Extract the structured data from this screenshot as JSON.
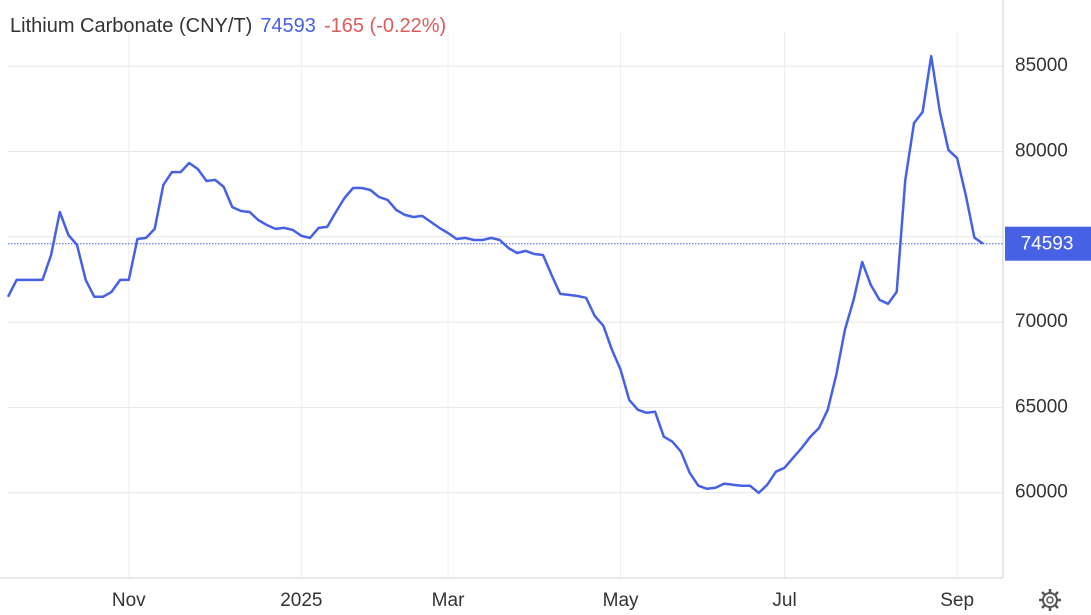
{
  "chart_data": {
    "type": "line",
    "title": "Lithium Carbonate (CNY/T)",
    "change_label": "-165 (-0.22%)",
    "categories": [
      null,
      null,
      null,
      null,
      null,
      null,
      null,
      null,
      null,
      null,
      null,
      null,
      null,
      null,
      "Nov",
      null,
      null,
      null,
      null,
      null,
      null,
      null,
      null,
      null,
      null,
      null,
      null,
      null,
      null,
      null,
      null,
      null,
      null,
      null,
      "2025",
      null,
      null,
      null,
      null,
      null,
      null,
      null,
      null,
      null,
      null,
      null,
      null,
      null,
      null,
      null,
      null,
      "Mar",
      null,
      null,
      null,
      null,
      null,
      null,
      null,
      null,
      null,
      null,
      null,
      null,
      null,
      null,
      null,
      null,
      null,
      null,
      null,
      "May",
      null,
      null,
      null,
      null,
      null,
      null,
      null,
      null,
      null,
      null,
      null,
      null,
      null,
      null,
      null,
      null,
      null,
      null,
      "Jul",
      null,
      null,
      null,
      null,
      null,
      null,
      null,
      null,
      null,
      null,
      null,
      null,
      null,
      null,
      null,
      null,
      null,
      null,
      null,
      "Sep",
      null,
      null,
      null
    ],
    "values": [
      71480,
      72470,
      72470,
      72470,
      72470,
      73930,
      76450,
      75100,
      74520,
      72470,
      71480,
      71480,
      71770,
      72470,
      72470,
      74870,
      74930,
      75460,
      78030,
      78790,
      78790,
      79320,
      78970,
      78270,
      78330,
      77920,
      76740,
      76510,
      76450,
      75980,
      75690,
      75460,
      75520,
      75400,
      75050,
      74930,
      75520,
      75580,
      76450,
      77270,
      77860,
      77860,
      77740,
      77330,
      77160,
      76570,
      76280,
      76160,
      76220,
      75870,
      75520,
      75220,
      74870,
      74930,
      74810,
      74810,
      74930,
      74810,
      74340,
      74050,
      74170,
      73990,
      73930,
      72760,
      71650,
      71590,
      71530,
      71420,
      70360,
      69780,
      68370,
      67200,
      65440,
      64860,
      64680,
      64740,
      63280,
      62990,
      62400,
      61170,
      60410,
      60230,
      60290,
      60530,
      60470,
      60410,
      60410,
      59990,
      60470,
      61230,
      61460,
      62050,
      62630,
      63280,
      63800,
      64860,
      66910,
      69540,
      71300,
      73520,
      72180,
      71300,
      71070,
      71770,
      78330,
      81660,
      82310,
      85590,
      82310,
      80080,
      79610,
      77450,
      74950,
      74593
    ],
    "color": "#4661e3",
    "change_color": "#dd5b5b",
    "ylim": [
      55000,
      87000
    ],
    "yticks": [
      60000,
      65000,
      70000,
      75000,
      80000,
      85000
    ],
    "grid": true
  }
}
